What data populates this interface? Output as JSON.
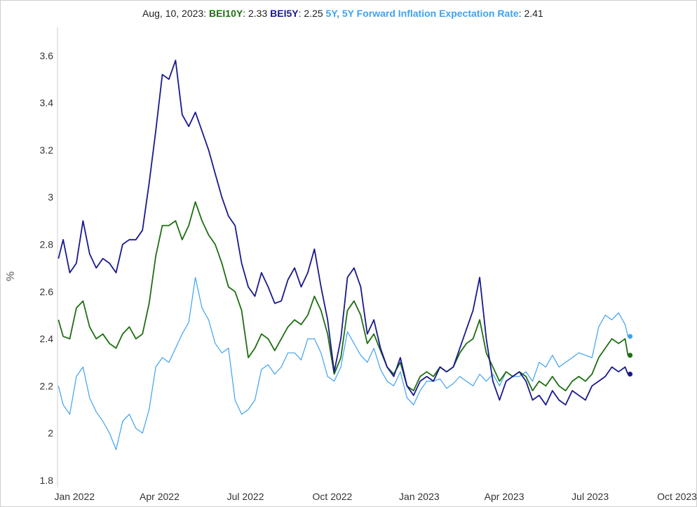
{
  "chart_data": {
    "type": "line",
    "readout": {
      "date": "Aug, 10, 2023:",
      "items": [
        {
          "name": "BEI10Y",
          "value": "2.33"
        },
        {
          "name": "BEI5Y",
          "value": "2.25"
        },
        {
          "name": "5Y, 5Y Forward Inflation Expectation Rate",
          "value": "2.41"
        }
      ]
    },
    "ylabel": "%",
    "ylim": [
      1.77,
      3.72
    ],
    "xlim": [
      "2021-12-14",
      "2023-10-08"
    ],
    "y_ticks": [
      "1.8",
      "2",
      "2.2",
      "2.4",
      "2.6",
      "2.8",
      "3",
      "3.2",
      "3.4",
      "3.6"
    ],
    "x_ticks": [
      {
        "label": "Jan 2022",
        "date": "2022-01-01"
      },
      {
        "label": "Apr 2022",
        "date": "2022-04-01"
      },
      {
        "label": "Jul 2022",
        "date": "2022-07-01"
      },
      {
        "label": "Oct 2022",
        "date": "2022-10-01"
      },
      {
        "label": "Jan 2023",
        "date": "2023-01-01"
      },
      {
        "label": "Apr 2023",
        "date": "2023-04-01"
      },
      {
        "label": "Jul 2023",
        "date": "2023-07-01"
      },
      {
        "label": "Oct 2023",
        "date": "2023-10-01"
      }
    ],
    "grid": false,
    "series": [
      {
        "name": "5Y, 5Y Forward Inflation Expectation Rate",
        "color": "#3fa2f0",
        "points": [
          [
            "2021-12-15",
            2.2
          ],
          [
            "2021-12-20",
            2.12
          ],
          [
            "2021-12-27",
            2.08
          ],
          [
            "2022-01-03",
            2.24
          ],
          [
            "2022-01-10",
            2.28
          ],
          [
            "2022-01-17",
            2.15
          ],
          [
            "2022-01-24",
            2.09
          ],
          [
            "2022-01-31",
            2.05
          ],
          [
            "2022-02-07",
            2.0
          ],
          [
            "2022-02-14",
            1.93
          ],
          [
            "2022-02-21",
            2.05
          ],
          [
            "2022-02-28",
            2.08
          ],
          [
            "2022-03-07",
            2.02
          ],
          [
            "2022-03-14",
            2.0
          ],
          [
            "2022-03-21",
            2.1
          ],
          [
            "2022-03-28",
            2.28
          ],
          [
            "2022-04-04",
            2.32
          ],
          [
            "2022-04-11",
            2.3
          ],
          [
            "2022-04-18",
            2.36
          ],
          [
            "2022-04-25",
            2.42
          ],
          [
            "2022-05-02",
            2.47
          ],
          [
            "2022-05-09",
            2.66
          ],
          [
            "2022-05-16",
            2.53
          ],
          [
            "2022-05-23",
            2.48
          ],
          [
            "2022-05-30",
            2.38
          ],
          [
            "2022-06-06",
            2.34
          ],
          [
            "2022-06-13",
            2.36
          ],
          [
            "2022-06-20",
            2.14
          ],
          [
            "2022-06-27",
            2.08
          ],
          [
            "2022-07-04",
            2.1
          ],
          [
            "2022-07-11",
            2.14
          ],
          [
            "2022-07-18",
            2.27
          ],
          [
            "2022-07-25",
            2.29
          ],
          [
            "2022-08-01",
            2.25
          ],
          [
            "2022-08-08",
            2.28
          ],
          [
            "2022-08-15",
            2.34
          ],
          [
            "2022-08-22",
            2.34
          ],
          [
            "2022-08-29",
            2.31
          ],
          [
            "2022-09-05",
            2.4
          ],
          [
            "2022-09-12",
            2.4
          ],
          [
            "2022-09-19",
            2.34
          ],
          [
            "2022-09-26",
            2.24
          ],
          [
            "2022-10-03",
            2.22
          ],
          [
            "2022-10-10",
            2.28
          ],
          [
            "2022-10-17",
            2.43
          ],
          [
            "2022-10-24",
            2.38
          ],
          [
            "2022-10-31",
            2.33
          ],
          [
            "2022-11-07",
            2.3
          ],
          [
            "2022-11-14",
            2.36
          ],
          [
            "2022-11-21",
            2.27
          ],
          [
            "2022-11-28",
            2.22
          ],
          [
            "2022-12-05",
            2.2
          ],
          [
            "2022-12-12",
            2.26
          ],
          [
            "2022-12-19",
            2.15
          ],
          [
            "2022-12-26",
            2.12
          ],
          [
            "2023-01-02",
            2.18
          ],
          [
            "2023-01-09",
            2.22
          ],
          [
            "2023-01-16",
            2.22
          ],
          [
            "2023-01-23",
            2.23
          ],
          [
            "2023-01-30",
            2.19
          ],
          [
            "2023-02-06",
            2.21
          ],
          [
            "2023-02-13",
            2.24
          ],
          [
            "2023-02-20",
            2.22
          ],
          [
            "2023-02-27",
            2.2
          ],
          [
            "2023-03-06",
            2.25
          ],
          [
            "2023-03-13",
            2.22
          ],
          [
            "2023-03-20",
            2.25
          ],
          [
            "2023-03-27",
            2.2
          ],
          [
            "2023-04-03",
            2.26
          ],
          [
            "2023-04-10",
            2.24
          ],
          [
            "2023-04-17",
            2.24
          ],
          [
            "2023-04-24",
            2.26
          ],
          [
            "2023-05-01",
            2.22
          ],
          [
            "2023-05-08",
            2.3
          ],
          [
            "2023-05-15",
            2.28
          ],
          [
            "2023-05-22",
            2.33
          ],
          [
            "2023-05-29",
            2.28
          ],
          [
            "2023-06-05",
            2.3
          ],
          [
            "2023-06-12",
            2.32
          ],
          [
            "2023-06-19",
            2.34
          ],
          [
            "2023-06-26",
            2.33
          ],
          [
            "2023-07-03",
            2.32
          ],
          [
            "2023-07-10",
            2.45
          ],
          [
            "2023-07-17",
            2.5
          ],
          [
            "2023-07-24",
            2.48
          ],
          [
            "2023-07-31",
            2.51
          ],
          [
            "2023-08-07",
            2.46
          ],
          [
            "2023-08-10",
            2.41
          ]
        ]
      },
      {
        "name": "BEI10Y",
        "color": "#1e6e12",
        "points": [
          [
            "2021-12-15",
            2.48
          ],
          [
            "2021-12-20",
            2.41
          ],
          [
            "2021-12-27",
            2.4
          ],
          [
            "2022-01-03",
            2.53
          ],
          [
            "2022-01-10",
            2.56
          ],
          [
            "2022-01-17",
            2.45
          ],
          [
            "2022-01-24",
            2.4
          ],
          [
            "2022-01-31",
            2.42
          ],
          [
            "2022-02-07",
            2.38
          ],
          [
            "2022-02-14",
            2.36
          ],
          [
            "2022-02-21",
            2.42
          ],
          [
            "2022-02-28",
            2.45
          ],
          [
            "2022-03-07",
            2.4
          ],
          [
            "2022-03-14",
            2.42
          ],
          [
            "2022-03-21",
            2.55
          ],
          [
            "2022-03-28",
            2.75
          ],
          [
            "2022-04-04",
            2.88
          ],
          [
            "2022-04-11",
            2.88
          ],
          [
            "2022-04-18",
            2.9
          ],
          [
            "2022-04-25",
            2.82
          ],
          [
            "2022-05-02",
            2.88
          ],
          [
            "2022-05-09",
            2.98
          ],
          [
            "2022-05-16",
            2.9
          ],
          [
            "2022-05-23",
            2.84
          ],
          [
            "2022-05-30",
            2.8
          ],
          [
            "2022-06-06",
            2.72
          ],
          [
            "2022-06-13",
            2.62
          ],
          [
            "2022-06-20",
            2.6
          ],
          [
            "2022-06-27",
            2.52
          ],
          [
            "2022-07-04",
            2.32
          ],
          [
            "2022-07-11",
            2.36
          ],
          [
            "2022-07-18",
            2.42
          ],
          [
            "2022-07-25",
            2.4
          ],
          [
            "2022-08-01",
            2.35
          ],
          [
            "2022-08-08",
            2.4
          ],
          [
            "2022-08-15",
            2.45
          ],
          [
            "2022-08-22",
            2.48
          ],
          [
            "2022-08-29",
            2.46
          ],
          [
            "2022-09-05",
            2.5
          ],
          [
            "2022-09-12",
            2.58
          ],
          [
            "2022-09-19",
            2.52
          ],
          [
            "2022-09-26",
            2.42
          ],
          [
            "2022-10-03",
            2.25
          ],
          [
            "2022-10-10",
            2.32
          ],
          [
            "2022-10-17",
            2.52
          ],
          [
            "2022-10-24",
            2.56
          ],
          [
            "2022-10-31",
            2.5
          ],
          [
            "2022-11-07",
            2.38
          ],
          [
            "2022-11-14",
            2.42
          ],
          [
            "2022-11-21",
            2.35
          ],
          [
            "2022-11-28",
            2.28
          ],
          [
            "2022-12-05",
            2.25
          ],
          [
            "2022-12-12",
            2.3
          ],
          [
            "2022-12-19",
            2.2
          ],
          [
            "2022-12-26",
            2.18
          ],
          [
            "2023-01-02",
            2.24
          ],
          [
            "2023-01-09",
            2.26
          ],
          [
            "2023-01-16",
            2.24
          ],
          [
            "2023-01-23",
            2.28
          ],
          [
            "2023-01-30",
            2.26
          ],
          [
            "2023-02-06",
            2.28
          ],
          [
            "2023-02-13",
            2.34
          ],
          [
            "2023-02-20",
            2.38
          ],
          [
            "2023-02-27",
            2.4
          ],
          [
            "2023-03-06",
            2.48
          ],
          [
            "2023-03-13",
            2.34
          ],
          [
            "2023-03-20",
            2.28
          ],
          [
            "2023-03-27",
            2.22
          ],
          [
            "2023-04-03",
            2.26
          ],
          [
            "2023-04-10",
            2.24
          ],
          [
            "2023-04-17",
            2.26
          ],
          [
            "2023-04-24",
            2.24
          ],
          [
            "2023-05-01",
            2.18
          ],
          [
            "2023-05-08",
            2.22
          ],
          [
            "2023-05-15",
            2.2
          ],
          [
            "2023-05-22",
            2.24
          ],
          [
            "2023-05-29",
            2.2
          ],
          [
            "2023-06-05",
            2.18
          ],
          [
            "2023-06-12",
            2.22
          ],
          [
            "2023-06-19",
            2.24
          ],
          [
            "2023-06-26",
            2.22
          ],
          [
            "2023-07-03",
            2.25
          ],
          [
            "2023-07-10",
            2.32
          ],
          [
            "2023-07-17",
            2.36
          ],
          [
            "2023-07-24",
            2.4
          ],
          [
            "2023-07-31",
            2.38
          ],
          [
            "2023-08-07",
            2.4
          ],
          [
            "2023-08-10",
            2.33
          ]
        ]
      },
      {
        "name": "BEI5Y",
        "color": "#19198c",
        "points": [
          [
            "2021-12-15",
            2.74
          ],
          [
            "2021-12-20",
            2.82
          ],
          [
            "2021-12-27",
            2.68
          ],
          [
            "2022-01-03",
            2.72
          ],
          [
            "2022-01-10",
            2.9
          ],
          [
            "2022-01-17",
            2.76
          ],
          [
            "2022-01-24",
            2.7
          ],
          [
            "2022-01-31",
            2.74
          ],
          [
            "2022-02-07",
            2.72
          ],
          [
            "2022-02-14",
            2.68
          ],
          [
            "2022-02-21",
            2.8
          ],
          [
            "2022-02-28",
            2.82
          ],
          [
            "2022-03-07",
            2.82
          ],
          [
            "2022-03-14",
            2.86
          ],
          [
            "2022-03-21",
            3.06
          ],
          [
            "2022-03-28",
            3.28
          ],
          [
            "2022-04-04",
            3.52
          ],
          [
            "2022-04-11",
            3.5
          ],
          [
            "2022-04-18",
            3.58
          ],
          [
            "2022-04-25",
            3.35
          ],
          [
            "2022-05-02",
            3.3
          ],
          [
            "2022-05-09",
            3.36
          ],
          [
            "2022-05-16",
            3.28
          ],
          [
            "2022-05-23",
            3.2
          ],
          [
            "2022-05-30",
            3.1
          ],
          [
            "2022-06-06",
            3.0
          ],
          [
            "2022-06-13",
            2.92
          ],
          [
            "2022-06-20",
            2.88
          ],
          [
            "2022-06-27",
            2.72
          ],
          [
            "2022-07-04",
            2.62
          ],
          [
            "2022-07-11",
            2.58
          ],
          [
            "2022-07-18",
            2.68
          ],
          [
            "2022-07-25",
            2.62
          ],
          [
            "2022-08-01",
            2.55
          ],
          [
            "2022-08-08",
            2.56
          ],
          [
            "2022-08-15",
            2.65
          ],
          [
            "2022-08-22",
            2.7
          ],
          [
            "2022-08-29",
            2.62
          ],
          [
            "2022-09-05",
            2.68
          ],
          [
            "2022-09-12",
            2.78
          ],
          [
            "2022-09-19",
            2.62
          ],
          [
            "2022-09-26",
            2.48
          ],
          [
            "2022-10-03",
            2.26
          ],
          [
            "2022-10-10",
            2.4
          ],
          [
            "2022-10-17",
            2.66
          ],
          [
            "2022-10-24",
            2.7
          ],
          [
            "2022-10-31",
            2.62
          ],
          [
            "2022-11-07",
            2.42
          ],
          [
            "2022-11-14",
            2.48
          ],
          [
            "2022-11-21",
            2.36
          ],
          [
            "2022-11-28",
            2.28
          ],
          [
            "2022-12-05",
            2.24
          ],
          [
            "2022-12-12",
            2.32
          ],
          [
            "2022-12-19",
            2.2
          ],
          [
            "2022-12-26",
            2.16
          ],
          [
            "2023-01-02",
            2.22
          ],
          [
            "2023-01-09",
            2.24
          ],
          [
            "2023-01-16",
            2.22
          ],
          [
            "2023-01-23",
            2.28
          ],
          [
            "2023-01-30",
            2.26
          ],
          [
            "2023-02-06",
            2.28
          ],
          [
            "2023-02-13",
            2.36
          ],
          [
            "2023-02-20",
            2.44
          ],
          [
            "2023-02-27",
            2.52
          ],
          [
            "2023-03-06",
            2.66
          ],
          [
            "2023-03-13",
            2.4
          ],
          [
            "2023-03-20",
            2.22
          ],
          [
            "2023-03-27",
            2.14
          ],
          [
            "2023-04-03",
            2.22
          ],
          [
            "2023-04-10",
            2.24
          ],
          [
            "2023-04-17",
            2.26
          ],
          [
            "2023-04-24",
            2.22
          ],
          [
            "2023-05-01",
            2.14
          ],
          [
            "2023-05-08",
            2.16
          ],
          [
            "2023-05-15",
            2.12
          ],
          [
            "2023-05-22",
            2.18
          ],
          [
            "2023-05-29",
            2.14
          ],
          [
            "2023-06-05",
            2.12
          ],
          [
            "2023-06-12",
            2.18
          ],
          [
            "2023-06-19",
            2.16
          ],
          [
            "2023-06-26",
            2.14
          ],
          [
            "2023-07-03",
            2.2
          ],
          [
            "2023-07-10",
            2.22
          ],
          [
            "2023-07-17",
            2.24
          ],
          [
            "2023-07-24",
            2.28
          ],
          [
            "2023-07-31",
            2.26
          ],
          [
            "2023-08-07",
            2.28
          ],
          [
            "2023-08-10",
            2.25
          ]
        ]
      }
    ]
  }
}
